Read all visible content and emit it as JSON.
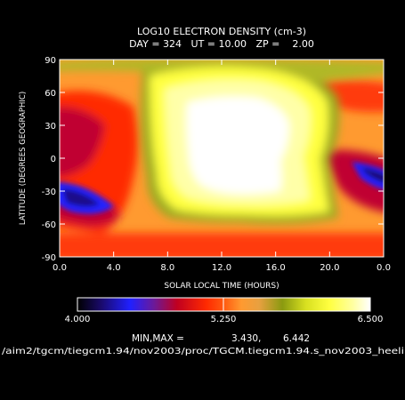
{
  "chart_data": {
    "type": "heatmap",
    "title": "LOG10 ELECTRON DENSITY (cm-3)",
    "subtitle": "DAY = 324   UT = 10.00   ZP =    2.00",
    "xlabel": "SOLAR LOCAL TIME (HOURS)",
    "ylabel": "LATITUDE (DEGREES GEOGRAPHIC)",
    "x_ticks": [
      "0.0",
      "4.0",
      "8.0",
      "12.0",
      "16.0",
      "20.0",
      "0.0"
    ],
    "y_ticks": [
      "90",
      "60",
      "30",
      "0",
      "-30",
      "-60",
      "-90"
    ],
    "colorbar": {
      "min_label": "4.000",
      "mid_label": "5.250",
      "max_label": "6.500",
      "min": 4.0,
      "max": 6.5
    },
    "minmax_label": "MIN,MAX =",
    "min_value": "3.430,",
    "max_value": "6.442",
    "source_path": "/aim2/tgcm/tiegcm1.94/nov2003/proc/TGCM.tiegcm1.94.s_nov2003_heeli"
  }
}
